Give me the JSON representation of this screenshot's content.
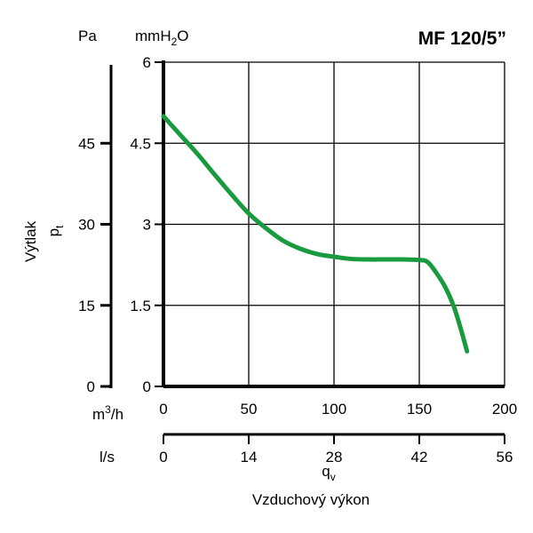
{
  "chart_data": {
    "type": "line",
    "title": "MF 120/5”",
    "left_unit": "Pa",
    "right_unit": "mmH",
    "right_unit_sub": "2",
    "right_unit_end": "O",
    "ylabel": "Výtlak",
    "ylabel_symbol": "p",
    "ylabel_symbol_sub": "t",
    "xlabel": "Vzduchový výkon",
    "xlabel_symbol": "q",
    "xlabel_symbol_sub": "v",
    "x_unit_primary_base": "m",
    "x_unit_primary_sup": "3",
    "x_unit_primary_end": "/h",
    "x_unit_secondary": "l/s",
    "x_ticks_m3h": [
      "0",
      "50",
      "100",
      "150",
      "200"
    ],
    "x_ticks_ls": [
      "0",
      "14",
      "28",
      "42",
      "56"
    ],
    "y_ticks_mmh2o": [
      "0",
      "1.5",
      "3",
      "4.5",
      "6"
    ],
    "y_ticks_pa": [
      "0",
      "15",
      "30",
      "45"
    ],
    "xlim": [
      0,
      200
    ],
    "ylim": [
      0,
      6
    ],
    "pa_lim": [
      0,
      60
    ],
    "grid": true,
    "series_color": "#1a9a3e",
    "series": [
      {
        "x": [
          0,
          10,
          20,
          30,
          40,
          50,
          60,
          70,
          80,
          90,
          100,
          110,
          120,
          130,
          140,
          150,
          155,
          160,
          165,
          170,
          174,
          178
        ],
        "y": [
          5.0,
          4.65,
          4.3,
          3.92,
          3.55,
          3.2,
          2.93,
          2.7,
          2.55,
          2.45,
          2.4,
          2.36,
          2.35,
          2.35,
          2.35,
          2.34,
          2.3,
          2.1,
          1.85,
          1.5,
          1.1,
          0.65
        ]
      }
    ]
  }
}
